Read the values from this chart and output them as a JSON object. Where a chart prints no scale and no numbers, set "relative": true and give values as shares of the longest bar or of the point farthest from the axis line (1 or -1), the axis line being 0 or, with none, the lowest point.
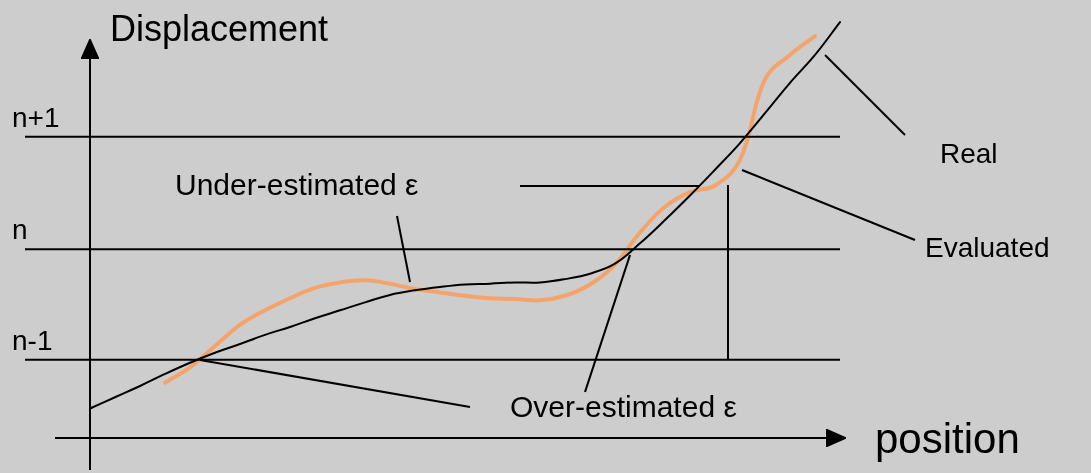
{
  "chart_data": {
    "type": "line",
    "xlabel": "position",
    "ylabel": "Displacement",
    "relative": true,
    "categories": [
      null,
      null,
      null,
      null,
      null,
      null,
      null,
      null,
      null,
      null,
      null,
      null,
      null,
      null,
      null,
      null,
      null,
      null,
      null,
      null,
      null,
      null,
      null,
      null,
      null,
      null,
      null,
      null,
      null,
      null,
      null
    ],
    "series": [
      {
        "name": "Real",
        "color": "#000000",
        "values": [
          0.071,
          0.098,
          0.125,
          0.154,
          0.181,
          0.205,
          0.226,
          0.248,
          0.267,
          0.288,
          0.307,
          0.326,
          0.344,
          0.355,
          0.363,
          0.369,
          0.371,
          0.374,
          0.374,
          0.382,
          0.395,
          0.419,
          0.468,
          0.524,
          0.583,
          0.645,
          0.709,
          0.781,
          0.854,
          0.921,
          1
        ]
      },
      {
        "name": "Evaluated",
        "color": "#f4a46a",
        "values": [
          null,
          null,
          null,
          0.133,
          0.17,
          0.221,
          0.272,
          0.307,
          0.336,
          0.361,
          0.374,
          0.379,
          0.371,
          0.358,
          0.35,
          0.342,
          0.336,
          0.334,
          0.331,
          0.342,
          0.369,
          0.417,
          0.494,
          0.556,
          0.591,
          0.607,
          0.669,
          0.862,
          0.921,
          0.966,
          null
        ]
      }
    ],
    "ref_lines": [
      {
        "axis": "y",
        "value": 0.188,
        "label": "n-1",
        "color": "#000000"
      },
      {
        "axis": "y",
        "value": 0.454,
        "label": "n",
        "color": "#000000"
      },
      {
        "axis": "y",
        "value": 0.724,
        "label": "n+1",
        "color": "#000000"
      }
    ],
    "marker": "none",
    "line_style": "solid",
    "legend": false,
    "annotations": [
      "Under-estimated ε",
      "Over-estimated ε"
    ]
  }
}
